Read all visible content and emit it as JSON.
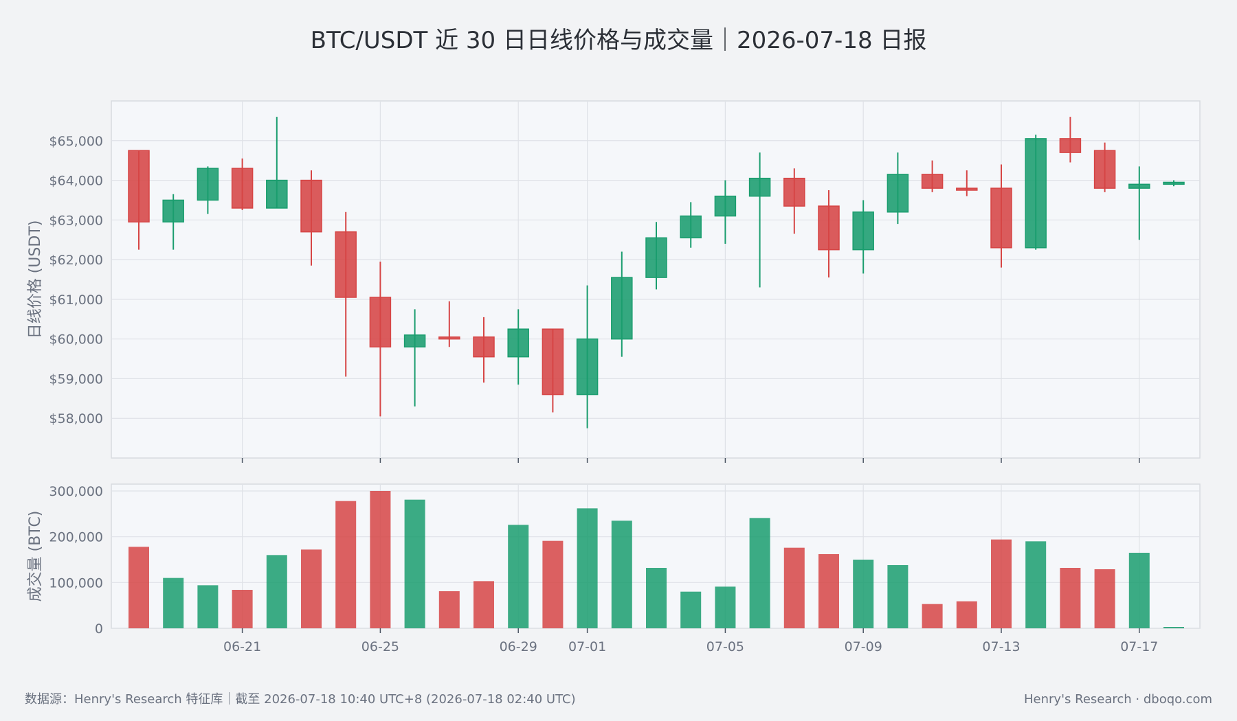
{
  "title": "BTC/USDT 近 30 日日线价格与成交量｜2026-07-18 日报",
  "footer": {
    "source": "数据源：Henry's Research 特征库｜截至 2026-07-18 10:40 UTC+8 (2026-07-18 02:40 UTC)",
    "brand": "Henry's Research · dboqo.com"
  },
  "colors": {
    "up": "#1a9d6e",
    "down": "#d64545",
    "grid": "#dfe2e7",
    "panel": "#f5f7fa"
  },
  "chart_data": {
    "type": "candlestick",
    "dates": [
      "06-18",
      "06-19",
      "06-20",
      "06-21",
      "06-22",
      "06-23",
      "06-24",
      "06-25",
      "06-26",
      "06-27",
      "06-28",
      "06-29",
      "06-30",
      "07-01",
      "07-02",
      "07-03",
      "07-04",
      "07-05",
      "07-06",
      "07-07",
      "07-08",
      "07-09",
      "07-10",
      "07-11",
      "07-12",
      "07-13",
      "07-14",
      "07-15",
      "07-16",
      "07-17",
      "07-18"
    ],
    "x_ticks": [
      "06-21",
      "06-25",
      "06-29",
      "07-01",
      "07-05",
      "07-09",
      "07-13",
      "07-17"
    ],
    "price": {
      "ylabel": "日线价格 (USDT)",
      "ylim": [
        57000,
        66000
      ],
      "y_ticks": [
        58000,
        59000,
        60000,
        61000,
        62000,
        63000,
        64000,
        65000
      ],
      "y_tick_labels": [
        "$58,000",
        "$59,000",
        "$60,000",
        "$61,000",
        "$62,000",
        "$63,000",
        "$64,000",
        "$65,000"
      ],
      "open": [
        64750,
        62950,
        63500,
        64300,
        63300,
        64000,
        62700,
        61050,
        59800,
        60050,
        60050,
        59550,
        60250,
        58600,
        60000,
        61550,
        62550,
        63100,
        63600,
        64050,
        63350,
        62250,
        63200,
        64150,
        63800,
        63800,
        62300,
        65050,
        64750,
        63800,
        63900
      ],
      "high": [
        64750,
        63650,
        64350,
        64550,
        65600,
        64250,
        63200,
        61950,
        60750,
        60950,
        60550,
        60750,
        60250,
        61350,
        62200,
        62950,
        63450,
        64000,
        64700,
        64300,
        63750,
        63500,
        64700,
        64500,
        64250,
        64400,
        65150,
        65600,
        64950,
        64350,
        64000
      ],
      "low": [
        62250,
        62250,
        63150,
        63250,
        63300,
        61850,
        59050,
        58050,
        58300,
        59800,
        58900,
        58850,
        58150,
        57750,
        59550,
        61250,
        62300,
        62400,
        61300,
        62650,
        61550,
        61650,
        62900,
        63700,
        63600,
        61800,
        62250,
        64450,
        63700,
        62500,
        63850
      ],
      "close": [
        62950,
        63500,
        64300,
        63300,
        64000,
        62700,
        61050,
        59800,
        60100,
        60000,
        59550,
        60250,
        58600,
        60000,
        61550,
        62550,
        63100,
        63600,
        64050,
        63350,
        62250,
        63200,
        64150,
        63800,
        63750,
        62300,
        65050,
        64700,
        63800,
        63900,
        63950
      ]
    },
    "volume": {
      "ylabel": "成交量 (BTC)",
      "ylim": [
        0,
        315000
      ],
      "y_ticks": [
        0,
        100000,
        200000,
        300000
      ],
      "y_tick_labels": [
        "0",
        "100,000",
        "200,000",
        "300,000"
      ],
      "values": [
        178000,
        110000,
        94000,
        84000,
        160000,
        172000,
        278000,
        300000,
        281000,
        81000,
        103000,
        226000,
        191000,
        262000,
        235000,
        132000,
        80000,
        91000,
        241000,
        176000,
        162000,
        150000,
        138000,
        53000,
        59000,
        194000,
        190000,
        132000,
        129000,
        165000,
        3000
      ]
    }
  }
}
